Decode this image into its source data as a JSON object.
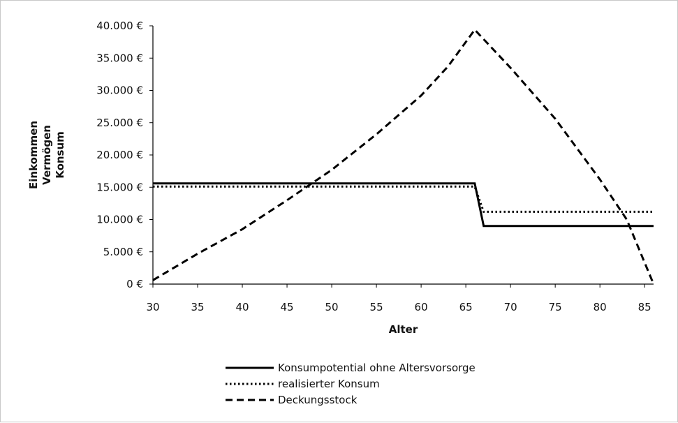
{
  "chart_data": {
    "type": "line",
    "title": "",
    "xlabel": "Alter",
    "ylabel_lines": [
      "Einkommen",
      "Vermögen",
      "Konsum"
    ],
    "xlim": [
      30,
      86
    ],
    "ylim": [
      0,
      40000
    ],
    "x_ticks": [
      30,
      35,
      40,
      45,
      50,
      55,
      60,
      65,
      70,
      75,
      80,
      85
    ],
    "y_ticks": [
      0,
      5000,
      10000,
      15000,
      20000,
      25000,
      30000,
      35000,
      40000
    ],
    "y_tick_labels": [
      "0 €",
      "5.000 €",
      "10.000 €",
      "15.000 €",
      "20.000 €",
      "25.000 €",
      "30.000 €",
      "35.000 €",
      "40.000 €"
    ],
    "grid": false,
    "legend_position": "bottom",
    "series": [
      {
        "name": "Konsumpotential ohne Altersvorsorge",
        "style": "solid",
        "color": "#000000",
        "points": [
          [
            30,
            15600
          ],
          [
            66,
            15600
          ],
          [
            67,
            9000
          ],
          [
            86,
            9000
          ]
        ]
      },
      {
        "name": "realisierter Konsum",
        "style": "dotted",
        "color": "#000000",
        "points": [
          [
            30,
            15100
          ],
          [
            66,
            15100
          ],
          [
            67,
            11200
          ],
          [
            86,
            11200
          ]
        ]
      },
      {
        "name": "Deckungsstock",
        "style": "dashed",
        "color": "#000000",
        "points": [
          [
            30,
            600
          ],
          [
            35,
            4700
          ],
          [
            40,
            8500
          ],
          [
            45,
            13000
          ],
          [
            50,
            17700
          ],
          [
            55,
            23200
          ],
          [
            60,
            29200
          ],
          [
            63,
            33700
          ],
          [
            66,
            39400
          ],
          [
            70,
            33500
          ],
          [
            75,
            25600
          ],
          [
            80,
            16200
          ],
          [
            83,
            10000
          ],
          [
            86,
            0
          ]
        ]
      }
    ]
  }
}
